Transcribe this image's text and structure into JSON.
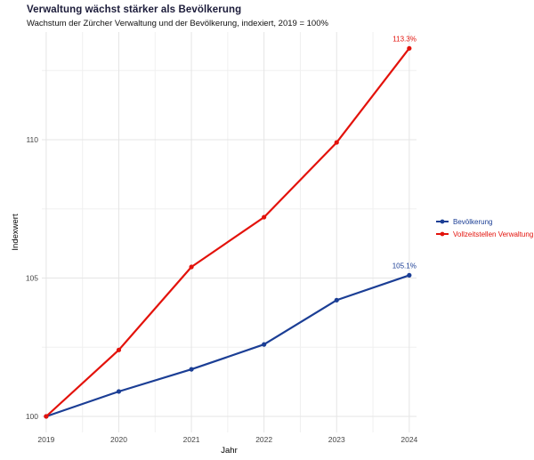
{
  "chart_data": {
    "type": "line",
    "title": "Verwaltung wächst stärker als Bevölkerung",
    "subtitle": "Wachstum der Zürcher Verwaltung und der Bevölkerung, indexiert, 2019 = 100%",
    "x": [
      2019,
      2020,
      2021,
      2022,
      2023,
      2024
    ],
    "series": [
      {
        "name": "Bevölkerung",
        "color": "#1b3e95",
        "values": [
          100,
          100.9,
          101.7,
          102.6,
          104.2,
          105.1
        ],
        "end_label": "105.1%"
      },
      {
        "name": "Vollzeitstellen Verwaltung",
        "color": "#e3120b",
        "values": [
          100,
          102.4,
          105.4,
          107.2,
          109.9,
          113.3
        ],
        "end_label": "113.3%"
      }
    ],
    "xlabel": "Jahr",
    "ylabel": "Indexwert",
    "xticks": [
      2019,
      2020,
      2021,
      2022,
      2023,
      2024
    ],
    "xticks_minor": [
      2019.5,
      2020.5,
      2021.5,
      2022.5,
      2023.5
    ],
    "yticks": [
      100,
      105,
      110
    ],
    "yticks_minor": [
      102.5,
      107.5,
      112.5
    ],
    "xlim": [
      2018.94,
      2024.1
    ],
    "ylim": [
      99.42,
      113.89
    ],
    "grid": "major+minor",
    "legend_position": "right-center",
    "colors": {
      "background": "#ffffff",
      "grid_major": "#e5e5e5",
      "grid_minor": "#f0f0f0",
      "axis_text": "#454545",
      "axis_title": "#000000",
      "title": "#1c1c3a",
      "subtitle": "#111111"
    }
  }
}
